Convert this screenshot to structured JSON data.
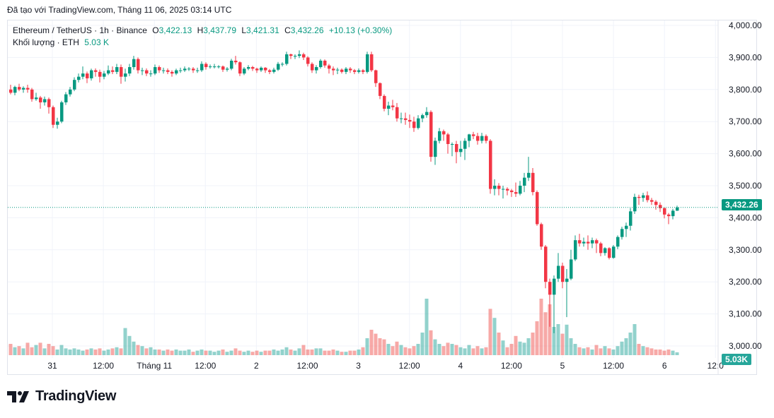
{
  "header": {
    "credit": "Đã tạo với TradingView.com, Tháng 11 06, 2025 03:14 UTC"
  },
  "legend": {
    "symbol": "Ethereum / TetherUS · 1h · Binance",
    "o_label": "O",
    "o": "3,422.13",
    "h_label": "H",
    "h": "3,437.79",
    "l_label": "L",
    "l": "3,421.31",
    "c_label": "C",
    "c": "3,432.26",
    "change": "+10.13 (+0.30%)",
    "volume_label": "Khối lượng · ETH",
    "volume": "5.03 K"
  },
  "badges": {
    "last_price": "3,432.26",
    "last_volume": "5.03K"
  },
  "footer": {
    "brand": "TradingView"
  },
  "colors": {
    "up": "#089981",
    "down": "#f23645",
    "volume_up": "#26a69a",
    "volume_down": "#ef5350",
    "grid": "#f0f3fa"
  },
  "chart_data": {
    "type": "candlestick",
    "interval": "1h",
    "ylim": [
      3000,
      4000
    ],
    "grid": true,
    "price_ticks": [
      "4,000.00",
      "3,900.00",
      "3,800.00",
      "3,700.00",
      "3,600.00",
      "3,500.00",
      "3,400.00",
      "3,300.00",
      "3,200.00",
      "3,100.00",
      "3,000.00"
    ],
    "time_ticks": [
      "31",
      "12:00",
      "Tháng 11",
      "12:00",
      "2",
      "12:00",
      "3",
      "12:00",
      "4",
      "12:00",
      "5",
      "12:00",
      "6",
      "12:0"
    ],
    "last_price": 3432.26,
    "ohlc": [
      [
        3800,
        3815,
        3785,
        3790
      ],
      [
        3790,
        3812,
        3782,
        3808
      ],
      [
        3808,
        3818,
        3795,
        3800
      ],
      [
        3800,
        3810,
        3790,
        3805
      ],
      [
        3805,
        3815,
        3790,
        3800
      ],
      [
        3800,
        3805,
        3762,
        3770
      ],
      [
        3770,
        3790,
        3765,
        3775
      ],
      [
        3775,
        3780,
        3740,
        3760
      ],
      [
        3760,
        3778,
        3750,
        3770
      ],
      [
        3770,
        3775,
        3725,
        3745
      ],
      [
        3745,
        3750,
        3680,
        3690
      ],
      [
        3690,
        3712,
        3678,
        3700
      ],
      [
        3700,
        3765,
        3695,
        3760
      ],
      [
        3760,
        3792,
        3752,
        3785
      ],
      [
        3785,
        3808,
        3778,
        3800
      ],
      [
        3800,
        3838,
        3795,
        3830
      ],
      [
        3830,
        3850,
        3822,
        3840
      ],
      [
        3840,
        3872,
        3832,
        3850
      ],
      [
        3850,
        3856,
        3820,
        3835
      ],
      [
        3835,
        3865,
        3828,
        3860
      ],
      [
        3860,
        3866,
        3840,
        3855
      ],
      [
        3855,
        3862,
        3822,
        3840
      ],
      [
        3840,
        3858,
        3832,
        3850
      ],
      [
        3850,
        3875,
        3845,
        3860
      ],
      [
        3860,
        3872,
        3848,
        3855
      ],
      [
        3855,
        3880,
        3848,
        3870
      ],
      [
        3870,
        3878,
        3818,
        3840
      ],
      [
        3840,
        3865,
        3825,
        3850
      ],
      [
        3850,
        3880,
        3842,
        3870
      ],
      [
        3870,
        3905,
        3862,
        3895
      ],
      [
        3895,
        3900,
        3850,
        3860
      ],
      [
        3860,
        3868,
        3845,
        3860
      ],
      [
        3860,
        3866,
        3842,
        3850
      ],
      [
        3850,
        3860,
        3840,
        3850
      ],
      [
        3850,
        3878,
        3845,
        3870
      ],
      [
        3870,
        3875,
        3852,
        3860
      ],
      [
        3860,
        3868,
        3850,
        3860
      ],
      [
        3860,
        3866,
        3848,
        3855
      ],
      [
        3855,
        3860,
        3840,
        3850
      ],
      [
        3850,
        3865,
        3845,
        3860
      ],
      [
        3860,
        3868,
        3852,
        3860
      ],
      [
        3860,
        3872,
        3855,
        3865
      ],
      [
        3865,
        3870,
        3858,
        3865
      ],
      [
        3865,
        3870,
        3852,
        3860
      ],
      [
        3860,
        3868,
        3852,
        3860
      ],
      [
        3860,
        3888,
        3855,
        3880
      ],
      [
        3880,
        3885,
        3862,
        3870
      ],
      [
        3870,
        3878,
        3865,
        3872
      ],
      [
        3872,
        3880,
        3866,
        3872
      ],
      [
        3872,
        3876,
        3866,
        3872
      ],
      [
        3872,
        3875,
        3855,
        3862
      ],
      [
        3862,
        3870,
        3856,
        3865
      ],
      [
        3865,
        3896,
        3860,
        3890
      ],
      [
        3890,
        3905,
        3878,
        3885
      ],
      [
        3885,
        3888,
        3842,
        3850
      ],
      [
        3850,
        3870,
        3845,
        3865
      ],
      [
        3865,
        3876,
        3860,
        3870
      ],
      [
        3870,
        3874,
        3858,
        3865
      ],
      [
        3865,
        3868,
        3852,
        3860
      ],
      [
        3860,
        3872,
        3855,
        3868
      ],
      [
        3868,
        3870,
        3852,
        3860
      ],
      [
        3860,
        3864,
        3848,
        3855
      ],
      [
        3855,
        3868,
        3850,
        3862
      ],
      [
        3862,
        3886,
        3858,
        3880
      ],
      [
        3880,
        3885,
        3872,
        3880
      ],
      [
        3880,
        3918,
        3875,
        3910
      ],
      [
        3910,
        3912,
        3895,
        3905
      ],
      [
        3905,
        3910,
        3895,
        3905
      ],
      [
        3905,
        3922,
        3898,
        3910
      ],
      [
        3910,
        3915,
        3892,
        3900
      ],
      [
        3900,
        3904,
        3872,
        3880
      ],
      [
        3880,
        3885,
        3852,
        3860
      ],
      [
        3860,
        3876,
        3850,
        3870
      ],
      [
        3870,
        3895,
        3865,
        3890
      ],
      [
        3890,
        3894,
        3868,
        3875
      ],
      [
        3875,
        3880,
        3850,
        3865
      ],
      [
        3865,
        3872,
        3845,
        3860
      ],
      [
        3860,
        3868,
        3848,
        3862
      ],
      [
        3862,
        3866,
        3850,
        3855
      ],
      [
        3855,
        3870,
        3848,
        3865
      ],
      [
        3865,
        3870,
        3852,
        3860
      ],
      [
        3860,
        3864,
        3848,
        3855
      ],
      [
        3855,
        3866,
        3850,
        3860
      ],
      [
        3860,
        3864,
        3848,
        3855
      ],
      [
        3855,
        3918,
        3850,
        3910
      ],
      [
        3910,
        3918,
        3855,
        3860
      ],
      [
        3860,
        3862,
        3808,
        3820
      ],
      [
        3820,
        3822,
        3770,
        3780
      ],
      [
        3780,
        3785,
        3732,
        3740
      ],
      [
        3740,
        3762,
        3720,
        3750
      ],
      [
        3750,
        3768,
        3735,
        3745
      ],
      [
        3745,
        3758,
        3700,
        3710
      ],
      [
        3710,
        3728,
        3695,
        3710
      ],
      [
        3710,
        3728,
        3690,
        3705
      ],
      [
        3705,
        3722,
        3680,
        3700
      ],
      [
        3700,
        3715,
        3668,
        3680
      ],
      [
        3680,
        3720,
        3675,
        3710
      ],
      [
        3710,
        3725,
        3698,
        3720
      ],
      [
        3720,
        3745,
        3712,
        3730
      ],
      [
        3730,
        3735,
        3575,
        3590
      ],
      [
        3590,
        3650,
        3565,
        3640
      ],
      [
        3640,
        3680,
        3632,
        3670
      ],
      [
        3670,
        3675,
        3640,
        3660
      ],
      [
        3660,
        3665,
        3600,
        3630
      ],
      [
        3630,
        3635,
        3592,
        3630
      ],
      [
        3630,
        3640,
        3570,
        3605
      ],
      [
        3605,
        3640,
        3590,
        3615
      ],
      [
        3615,
        3648,
        3580,
        3640
      ],
      [
        3640,
        3662,
        3620,
        3660
      ],
      [
        3660,
        3668,
        3645,
        3655
      ],
      [
        3655,
        3665,
        3628,
        3640
      ],
      [
        3640,
        3665,
        3632,
        3655
      ],
      [
        3655,
        3660,
        3632,
        3640
      ],
      [
        3640,
        3645,
        3475,
        3490
      ],
      [
        3490,
        3520,
        3470,
        3500
      ],
      [
        3500,
        3508,
        3470,
        3490
      ],
      [
        3490,
        3500,
        3460,
        3490
      ],
      [
        3490,
        3495,
        3470,
        3485
      ],
      [
        3485,
        3490,
        3465,
        3480
      ],
      [
        3480,
        3510,
        3465,
        3475
      ],
      [
        3475,
        3515,
        3470,
        3500
      ],
      [
        3500,
        3540,
        3480,
        3525
      ],
      [
        3525,
        3590,
        3515,
        3540
      ],
      [
        3540,
        3555,
        3470,
        3480
      ],
      [
        3480,
        3485,
        3375,
        3380
      ],
      [
        3380,
        3385,
        3300,
        3310
      ],
      [
        3310,
        3315,
        3180,
        3200
      ],
      [
        3200,
        3210,
        3060,
        3160
      ],
      [
        3160,
        3220,
        3040,
        3210
      ],
      [
        3210,
        3290,
        3200,
        3250
      ],
      [
        3250,
        3260,
        3180,
        3200
      ],
      [
        3200,
        3240,
        3090,
        3210
      ],
      [
        3210,
        3300,
        3205,
        3270
      ],
      [
        3270,
        3345,
        3265,
        3330
      ],
      [
        3330,
        3350,
        3310,
        3320
      ],
      [
        3320,
        3338,
        3310,
        3325
      ],
      [
        3325,
        3345,
        3300,
        3320
      ],
      [
        3320,
        3338,
        3305,
        3330
      ],
      [
        3330,
        3335,
        3290,
        3320
      ],
      [
        3320,
        3325,
        3280,
        3290
      ],
      [
        3290,
        3308,
        3282,
        3305
      ],
      [
        3305,
        3308,
        3270,
        3275
      ],
      [
        3275,
        3315,
        3272,
        3310
      ],
      [
        3310,
        3345,
        3302,
        3340
      ],
      [
        3340,
        3372,
        3332,
        3365
      ],
      [
        3365,
        3385,
        3340,
        3375
      ],
      [
        3375,
        3430,
        3360,
        3420
      ],
      [
        3420,
        3475,
        3412,
        3465
      ],
      [
        3465,
        3472,
        3440,
        3462
      ],
      [
        3462,
        3478,
        3450,
        3470
      ],
      [
        3470,
        3482,
        3448,
        3455
      ],
      [
        3455,
        3462,
        3440,
        3450
      ],
      [
        3450,
        3455,
        3425,
        3440
      ],
      [
        3440,
        3448,
        3418,
        3430
      ],
      [
        3430,
        3432,
        3398,
        3410
      ],
      [
        3410,
        3415,
        3380,
        3405
      ],
      [
        3405,
        3428,
        3395,
        3422.13
      ],
      [
        3422.13,
        3437.79,
        3421.31,
        3432.26
      ]
    ],
    "volume_k": [
      20,
      14,
      16,
      12,
      22,
      14,
      18,
      22,
      12,
      20,
      16,
      10,
      18,
      12,
      10,
      12,
      10,
      8,
      10,
      12,
      10,
      12,
      8,
      10,
      12,
      14,
      12,
      48,
      34,
      24,
      18,
      16,
      12,
      14,
      10,
      10,
      8,
      10,
      8,
      10,
      8,
      8,
      10,
      6,
      8,
      10,
      8,
      8,
      6,
      8,
      10,
      6,
      8,
      12,
      8,
      6,
      8,
      6,
      8,
      6,
      8,
      8,
      10,
      8,
      10,
      14,
      10,
      8,
      12,
      18,
      10,
      10,
      12,
      12,
      8,
      8,
      10,
      8,
      6,
      6,
      8,
      8,
      10,
      14,
      30,
      45,
      38,
      30,
      28,
      20,
      16,
      24,
      18,
      14,
      12,
      16,
      20,
      40,
      100,
      44,
      28,
      20,
      16,
      22,
      20,
      18,
      14,
      12,
      18,
      12,
      16,
      12,
      14,
      82,
      66,
      40,
      26,
      14,
      20,
      34,
      24,
      22,
      30,
      40,
      60,
      100,
      76,
      90,
      50,
      55,
      38,
      54,
      30,
      20,
      14,
      12,
      14,
      10,
      18,
      12,
      16,
      12,
      10,
      16,
      24,
      30,
      40,
      55,
      20,
      16,
      14,
      12,
      10,
      10,
      8,
      10,
      8,
      5.03
    ]
  }
}
